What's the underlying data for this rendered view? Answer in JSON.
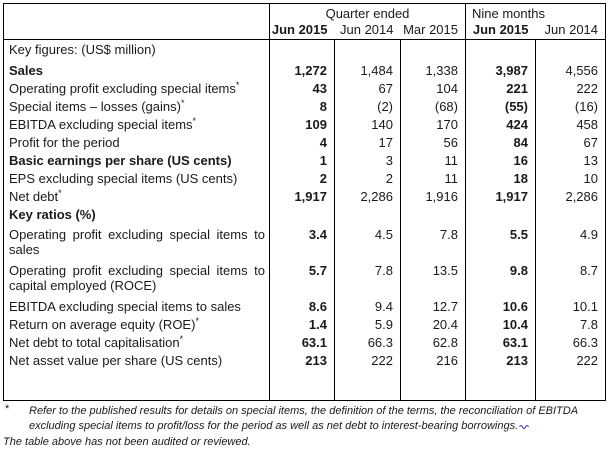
{
  "colors": {
    "text": "#1a1a1a",
    "border": "#000000",
    "spellcheck_squiggle": "#3b3bd4"
  },
  "table": {
    "col_groups": [
      {
        "label": "Quarter ended",
        "span": 3
      },
      {
        "label": "Nine months",
        "span": 2
      }
    ],
    "col_headers": [
      "Jun 2015",
      "Jun 2014",
      "Mar 2015",
      "Jun 2015",
      "Jun 2014"
    ],
    "bold_value_columns": [
      0,
      3
    ],
    "rows": [
      {
        "type": "section-keyfig",
        "label": "Key figures: (US$ million)",
        "bold": false,
        "values": [
          "",
          "",
          "",
          "",
          ""
        ]
      },
      {
        "type": "row",
        "label": "Sales",
        "bold": true,
        "values": [
          "1,272",
          "1,484",
          "1,338",
          "3,987",
          "4,556"
        ]
      },
      {
        "type": "row",
        "label": "Operating profit excluding special items",
        "sup": "*",
        "values": [
          "43",
          "67",
          "104",
          "221",
          "222"
        ]
      },
      {
        "type": "row",
        "label": "Special items – losses (gains)",
        "sup": "*",
        "values": [
          "8",
          "(2)",
          "(68)",
          "(55)",
          "(16)"
        ]
      },
      {
        "type": "row",
        "label": "EBITDA excluding special items",
        "sup": "*",
        "values": [
          "109",
          "140",
          "170",
          "424",
          "458"
        ]
      },
      {
        "type": "row",
        "label": "Profit for the period",
        "values": [
          "4",
          "17",
          "56",
          "84",
          "67"
        ]
      },
      {
        "type": "row",
        "label": "Basic earnings per share (US cents)",
        "bold": true,
        "values": [
          "1",
          "3",
          "11",
          "16",
          "13"
        ]
      },
      {
        "type": "row",
        "label": "EPS excluding special items (US cents)",
        "values": [
          "2",
          "2",
          "11",
          "18",
          "10"
        ]
      },
      {
        "type": "row",
        "label": "Net debt",
        "sup": "*",
        "values": [
          "1,917",
          "2,286",
          "1,916",
          "1,917",
          "2,286"
        ]
      },
      {
        "type": "section-ratios",
        "label": "Key ratios (%)",
        "bold": true,
        "values": [
          "",
          "",
          "",
          "",
          ""
        ]
      },
      {
        "type": "wrap",
        "label": "Operating profit excluding special items to sales",
        "values": [
          "3.4",
          "4.5",
          "7.8",
          "5.5",
          "4.9"
        ]
      },
      {
        "type": "wrap",
        "label": "Operating profit excluding special items to capital employed (ROCE)",
        "values": [
          "5.7",
          "7.8",
          "13.5",
          "9.8",
          "8.7"
        ]
      },
      {
        "type": "row",
        "label": "EBITDA excluding special items to sales",
        "values": [
          "8.6",
          "9.4",
          "12.7",
          "10.6",
          "10.1"
        ]
      },
      {
        "type": "row",
        "label": "Return on average equity (ROE)",
        "sup": "*",
        "values": [
          "1.4",
          "5.9",
          "20.4",
          "10.4",
          "7.8"
        ]
      },
      {
        "type": "row",
        "label": "Net debt to total capitalisation",
        "sup": "*",
        "values": [
          "63.1",
          "66.3",
          "62.8",
          "63.1",
          "66.3"
        ]
      },
      {
        "type": "row",
        "label": "Net asset value per share (US cents)",
        "values": [
          "213",
          "222",
          "216",
          "213",
          "222"
        ]
      },
      {
        "type": "spacer",
        "label": "",
        "values": [
          "",
          "",
          "",
          "",
          ""
        ]
      }
    ]
  },
  "footnotes": {
    "marker": "*",
    "note1": "Refer to the published results for details on special items, the definition of the terms, the reconciliation of EBITDA excluding special items to profit/loss for the period as well as net debt to interest-bearing borrowings.",
    "note2": "The table above has not been audited or reviewed."
  }
}
